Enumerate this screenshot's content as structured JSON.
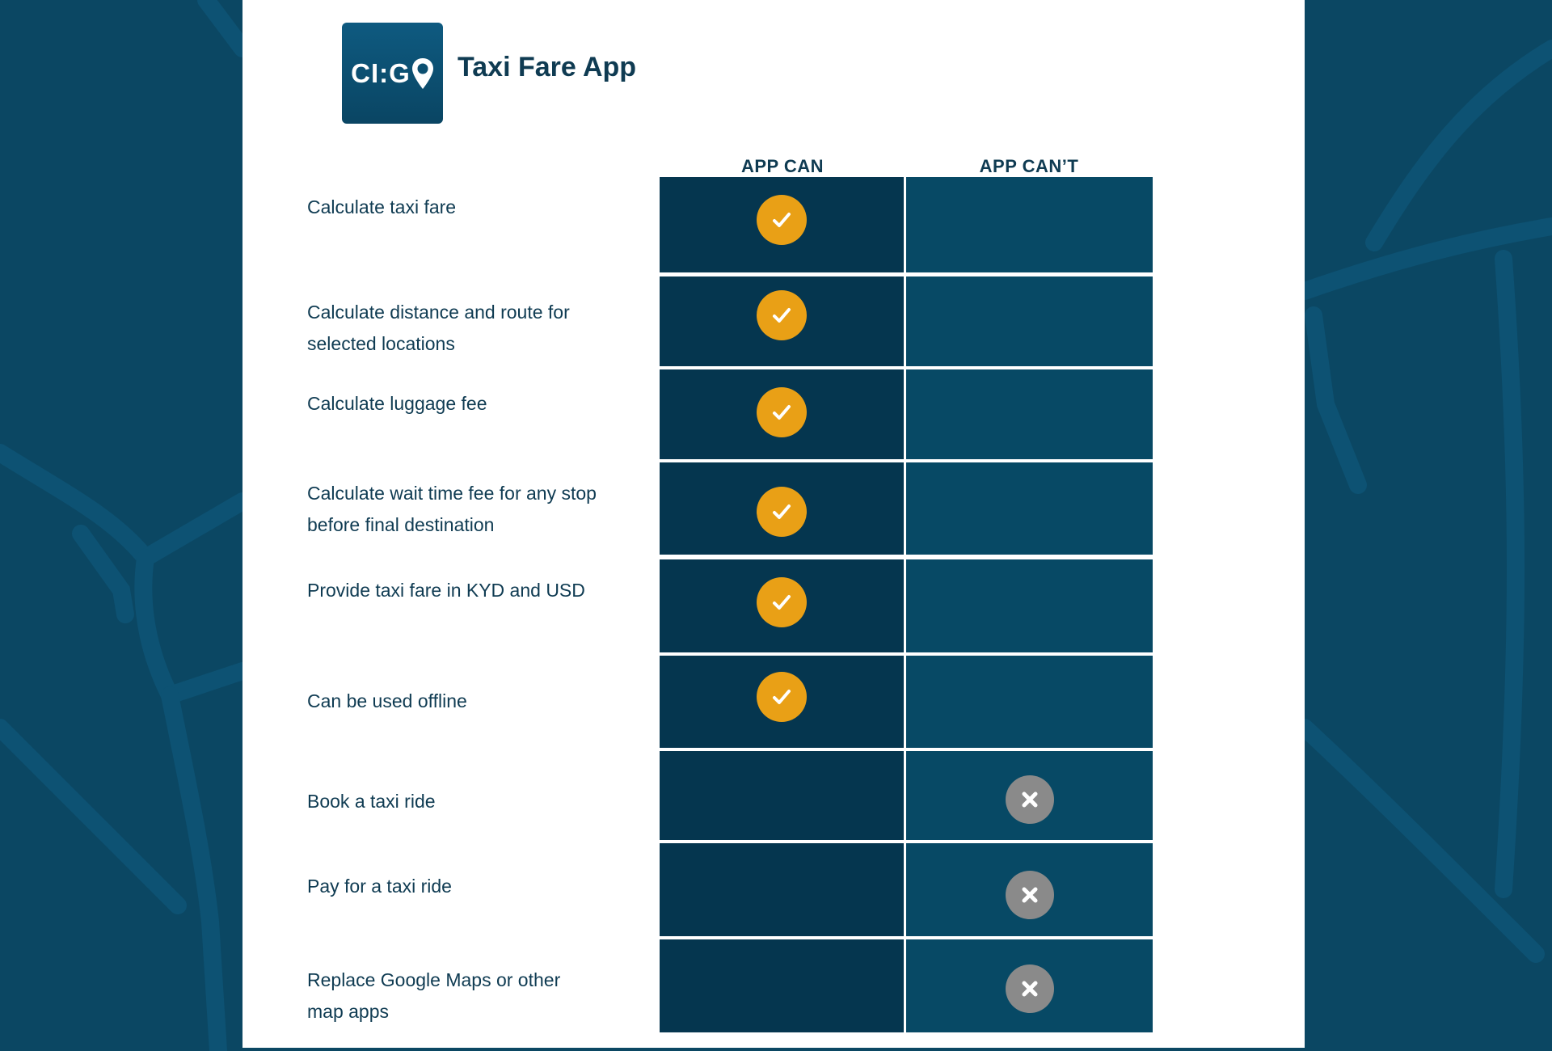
{
  "app": {
    "logo_text": "CI:GO",
    "title": "Taxi Fare App"
  },
  "columns": {
    "can": "APP CAN",
    "cant": "APP CAN’T"
  },
  "colors": {
    "background": "#0b4763",
    "can_cell": "#05364f",
    "cant_cell": "#074965",
    "check_badge": "#e9a016",
    "cross_badge": "#8a8a8a",
    "text": "#0f3b52"
  },
  "rows": [
    {
      "label": "Calculate taxi fare",
      "can": true
    },
    {
      "label": "Calculate distance and route for selected locations",
      "can": true
    },
    {
      "label": "Calculate luggage fee",
      "can": true
    },
    {
      "label": "Calculate wait time fee for any stop before final destination",
      "can": true
    },
    {
      "label": "Provide taxi fare in KYD and USD",
      "can": true
    },
    {
      "label": "Can be used offline",
      "can": true
    },
    {
      "label": "Book a taxi ride",
      "can": false
    },
    {
      "label": "Pay for a taxi ride",
      "can": false
    },
    {
      "label": "Replace Google Maps or other map apps",
      "can": false
    }
  ]
}
